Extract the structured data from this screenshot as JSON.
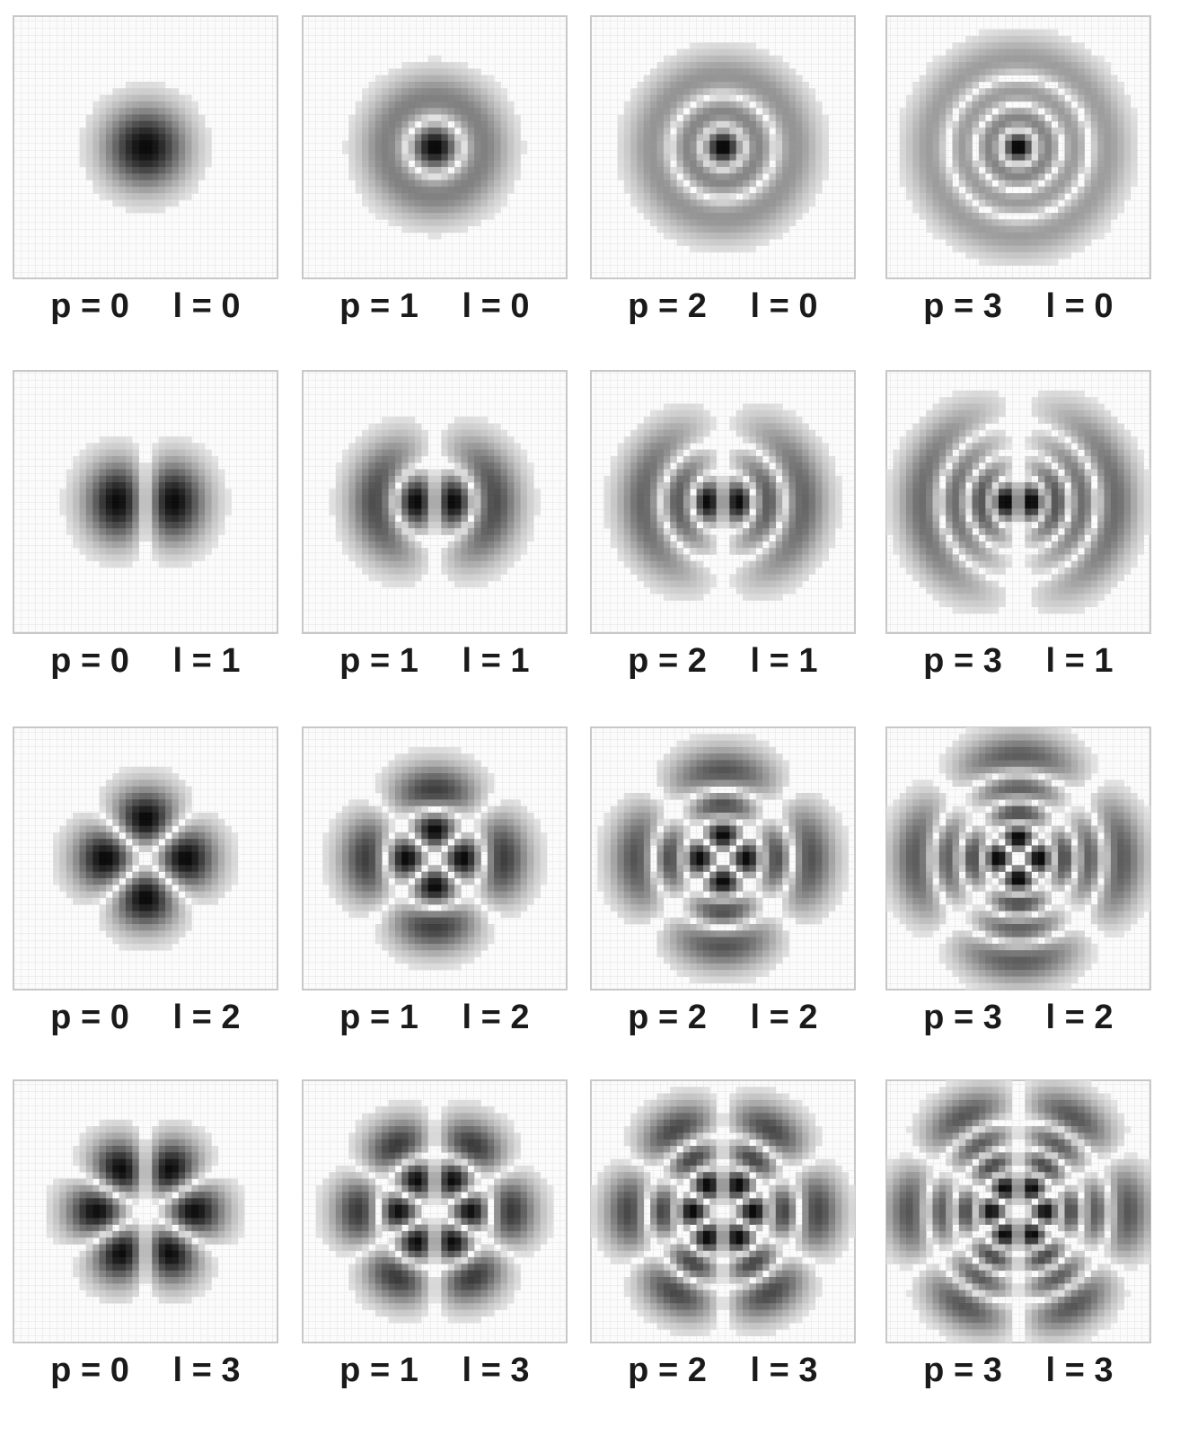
{
  "panels": [
    {
      "p": "p = 0",
      "l": "l = 0"
    },
    {
      "p": "p = 1",
      "l": "l = 0"
    },
    {
      "p": "p = 2",
      "l": "l = 0"
    },
    {
      "p": "p = 3",
      "l": "l = 0"
    },
    {
      "p": "p = 0",
      "l": "l = 1"
    },
    {
      "p": "p = 1",
      "l": "l = 1"
    },
    {
      "p": "p = 2",
      "l": "l = 1"
    },
    {
      "p": "p = 3",
      "l": "l = 1"
    },
    {
      "p": "p = 0",
      "l": "l = 2"
    },
    {
      "p": "p = 1",
      "l": "l = 2"
    },
    {
      "p": "p = 2",
      "l": "l = 2"
    },
    {
      "p": "p = 3",
      "l": "l = 2"
    },
    {
      "p": "p = 0",
      "l": "l = 3"
    },
    {
      "p": "p = 1",
      "l": "l = 3"
    },
    {
      "p": "p = 2",
      "l": "l = 3"
    },
    {
      "p": "p = 3",
      "l": "l = 3"
    }
  ]
}
